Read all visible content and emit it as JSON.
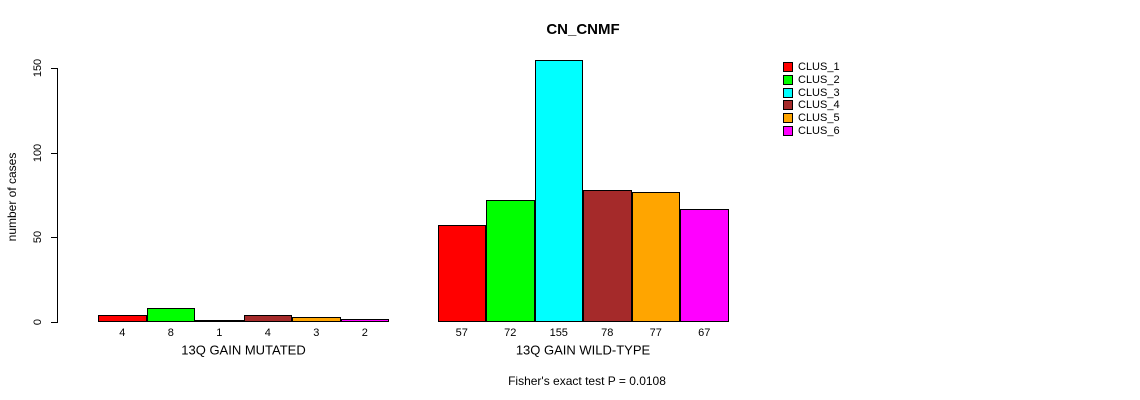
{
  "title": "CN_CNMF",
  "chart_data": {
    "type": "bar",
    "title": "CN_CNMF",
    "ylabel": "number of cases",
    "xlabel": "",
    "ylim": [
      0,
      155
    ],
    "yticks": [
      0,
      50,
      100,
      150
    ],
    "grid": false,
    "legend_position": "right",
    "show_bar_values": true,
    "categories": [
      "13Q GAIN MUTATED",
      "13Q GAIN WILD-TYPE"
    ],
    "series": [
      {
        "name": "CLUS_1",
        "color": "#FF0000",
        "values": [
          4,
          57
        ]
      },
      {
        "name": "CLUS_2",
        "color": "#00FF00",
        "values": [
          8,
          72
        ]
      },
      {
        "name": "CLUS_3",
        "color": "#00FFFF",
        "values": [
          1,
          155
        ]
      },
      {
        "name": "CLUS_4",
        "color": "#A52A2A",
        "values": [
          4,
          78
        ]
      },
      {
        "name": "CLUS_5",
        "color": "#FFA500",
        "values": [
          3,
          77
        ]
      },
      {
        "name": "CLUS_6",
        "color": "#FF00FF",
        "values": [
          2,
          67
        ]
      }
    ],
    "annotation": "Fisher's exact test P = 0.0108"
  },
  "colors": {
    "background": "#FFFFFF",
    "axis": "#000000",
    "bar_border": "#000000",
    "text": "#000000"
  }
}
